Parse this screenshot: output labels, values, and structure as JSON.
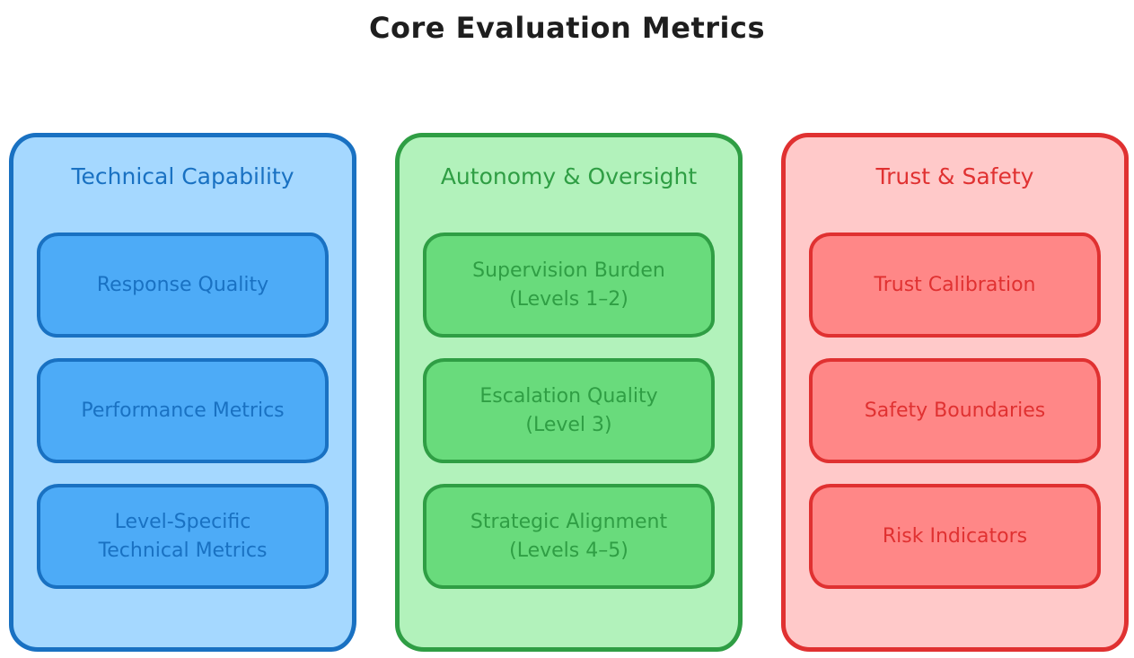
{
  "title": "Core Evaluation Metrics",
  "title_color": "#1e1e1e",
  "columns": [
    {
      "id": "technical-capability",
      "header": "Technical Capability",
      "colors": {
        "bg": "#a5d8ff",
        "border": "#1971c2",
        "text": "#1971c2",
        "item_bg": "#4dabf7"
      },
      "items": [
        {
          "label": "Response Quality"
        },
        {
          "label": "Performance Metrics"
        },
        {
          "label": "Level-Specific\nTechnical Metrics"
        }
      ]
    },
    {
      "id": "autonomy-oversight",
      "header": "Autonomy & Oversight",
      "colors": {
        "bg": "#b2f2bb",
        "border": "#2f9e44",
        "text": "#2f9e44",
        "item_bg": "#69db7c"
      },
      "items": [
        {
          "label": "Supervision Burden\n(Levels 1–2)"
        },
        {
          "label": "Escalation Quality\n(Level 3)"
        },
        {
          "label": "Strategic Alignment\n(Levels 4–5)"
        }
      ]
    },
    {
      "id": "trust-safety",
      "header": "Trust & Safety",
      "colors": {
        "bg": "#ffc9c9",
        "border": "#e03131",
        "text": "#e03131",
        "item_bg": "#ff8787"
      },
      "items": [
        {
          "label": "Trust Calibration"
        },
        {
          "label": "Safety Boundaries"
        },
        {
          "label": "Risk Indicators"
        }
      ]
    }
  ]
}
